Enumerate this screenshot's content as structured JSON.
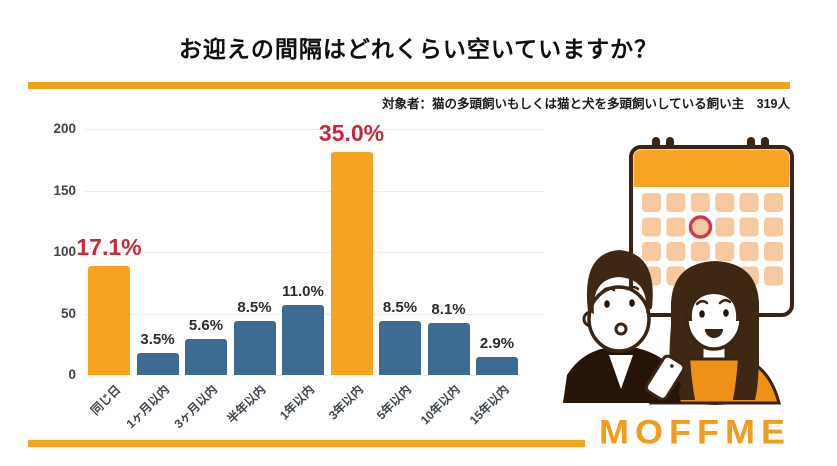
{
  "header": {
    "title": "お迎えの間隔はどれくらい空いていますか？",
    "subtitle": "対象者：猫の多頭飼いもしくは猫と犬を多頭飼いしている飼い主　319人"
  },
  "branding": {
    "logo_text": "MOFFME"
  },
  "colors": {
    "accent_orange": "#F5A21D",
    "bar_blue": "#3E6B94",
    "bar_orange": "#F7A322",
    "highlight_label_red": "#C9283C",
    "label_dark": "#2B2B2B",
    "gridline": "#ECECEC",
    "marked_date_circle": "#CE3A4E"
  },
  "chart_data": {
    "type": "bar",
    "title": "お迎えの間隔はどれくらい空いていますか？",
    "categories": [
      "同じ日",
      "1ヶ月以内",
      "3ヶ月以内",
      "半年以内",
      "1年以内",
      "3年以内",
      "5年以内",
      "10年以内",
      "15年以内"
    ],
    "values": [
      89,
      18,
      29,
      44,
      57,
      181,
      44,
      42,
      15
    ],
    "value_labels": [
      "17.1%",
      "3.5%",
      "5.6%",
      "8.5%",
      "11.0%",
      "35.0%",
      "8.5%",
      "8.1%",
      "2.9%"
    ],
    "highlighted_indices": [
      0,
      5
    ],
    "xlabel": "",
    "ylabel": "",
    "ylim": [
      0,
      200
    ],
    "yticks": [
      0,
      50,
      100,
      150,
      200
    ],
    "grid": true,
    "legend": false
  },
  "illustration": {
    "name": "calendar-with-couple",
    "elements": [
      "calendar-icon",
      "marked-date-circle",
      "man-with-phone",
      "woman"
    ]
  }
}
